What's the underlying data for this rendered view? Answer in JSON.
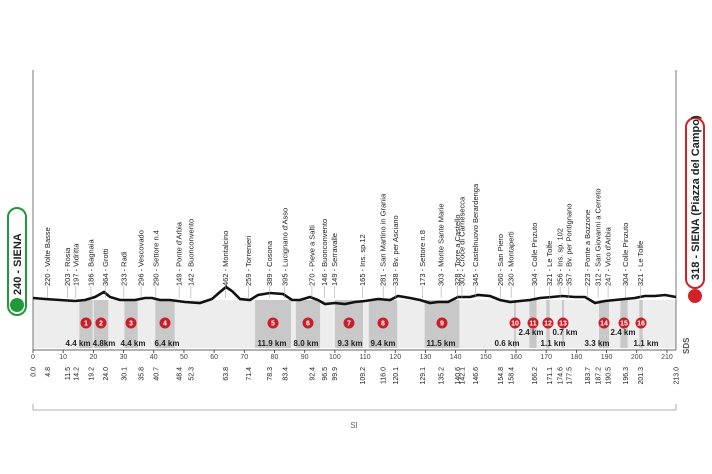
{
  "start": {
    "label": "240 - SIENA",
    "km": "0.0"
  },
  "finish": {
    "label": "318 - SIENA (Piazza del Campo)",
    "km": "213.0"
  },
  "waypoints": [
    {
      "km": "4.8",
      "label": "220 - Volte Basse"
    },
    {
      "km": "11.5",
      "label": "203 - Rosia"
    },
    {
      "km": "14.2",
      "label": "197 - Vidritta"
    },
    {
      "km": "19.2",
      "label": "186 - Bagnaia"
    },
    {
      "km": "24.0",
      "label": "364 - Grotti"
    },
    {
      "km": "30.1",
      "label": "233 - Radi"
    },
    {
      "km": "35.8",
      "label": "296 - Vescovado"
    },
    {
      "km": "40.7",
      "label": "290 - Settore n.4"
    },
    {
      "km": "48.4",
      "label": "149 - Ponte d'Arbia"
    },
    {
      "km": "52.3",
      "label": "142 - Buonconvento"
    },
    {
      "km": "63.8",
      "label": "462 - Montalcino"
    },
    {
      "km": "71.4",
      "label": "259 - Torrenieri"
    },
    {
      "km": "78.3",
      "label": "389 - Cosona"
    },
    {
      "km": "83.4",
      "label": "395 - Lucignano d'Asso"
    },
    {
      "km": "92.4",
      "label": "270 - Pieve a Salti"
    },
    {
      "km": "96.5",
      "label": "146 - Buonconvento"
    },
    {
      "km": "99.9",
      "label": "149 - Serravalle"
    },
    {
      "km": "109.2",
      "label": "165 - Ins. sp.12"
    },
    {
      "km": "116.0",
      "label": "281 - San Martino in Grania"
    },
    {
      "km": "120.1",
      "label": "338 - Bv. per Asciano"
    },
    {
      "km": "129.1",
      "label": "173 - Settore n.8"
    },
    {
      "km": "135.2",
      "label": "303 - Monte Sante Marie"
    },
    {
      "km": "140.6",
      "label": "328 - Torre a Castello"
    },
    {
      "km": "142.1",
      "label": "302 - Croce di Carnesecca"
    },
    {
      "km": "146.6",
      "label": "345 - Castelnuovo Berardenga"
    },
    {
      "km": "154.8",
      "label": "260 - San Piero"
    },
    {
      "km": "158.4",
      "label": "230 - Montaperti"
    },
    {
      "km": "166.2",
      "label": "304 - Colle Pinzuto"
    },
    {
      "km": "171.1",
      "label": "321 - Le Tolfe"
    },
    {
      "km": "174.6",
      "label": "356 - Ins. sp. 102"
    },
    {
      "km": "177.5",
      "label": "357 - Bv. per Pontignano"
    },
    {
      "km": "183.7",
      "label": "223 - Ponte a Bozzone"
    },
    {
      "km": "187.2",
      "label": "312 - San Giovanni a Cerreto"
    },
    {
      "km": "190.5",
      "label": "247 - Vico d'Arbia"
    },
    {
      "km": "196.3",
      "label": "304 - Colle Pinzuto"
    },
    {
      "km": "201.3",
      "label": "321 - Le Tolfe"
    }
  ],
  "sectors": [
    {
      "number": 1,
      "length": "4.4 km"
    },
    {
      "number": 2,
      "length": "4.8km"
    },
    {
      "number": 3,
      "length": "4.4 km"
    },
    {
      "number": 4,
      "length": "6.4 km"
    },
    {
      "number": 5,
      "length": "11.9 km"
    },
    {
      "number": 6,
      "length": "8.0 km"
    },
    {
      "number": 7,
      "length": "9.3 km"
    },
    {
      "number": 8,
      "length": "9.4 km"
    },
    {
      "number": 9,
      "length": "11.5 km"
    },
    {
      "number": 10,
      "length": "0.6 km"
    },
    {
      "number": 11,
      "length": "2.4 km"
    },
    {
      "number": 12,
      "length": "1.1 km"
    },
    {
      "number": 13,
      "length": "0.7 km"
    },
    {
      "number": 14,
      "length": "3.3 km"
    },
    {
      "number": 15,
      "length": "2.4 km"
    },
    {
      "number": 16,
      "length": "1.1 km"
    }
  ],
  "axis": {
    "ticks": [
      0,
      10,
      20,
      30,
      40,
      50,
      60,
      70,
      80,
      90,
      100,
      110,
      120,
      130,
      140,
      150,
      160,
      170,
      180,
      190,
      200,
      210
    ]
  },
  "footer": {
    "region": "SI",
    "code": "SDS"
  }
}
